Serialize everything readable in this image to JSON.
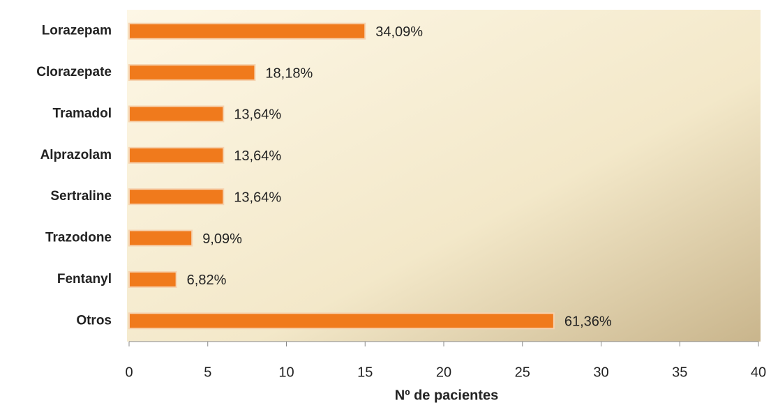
{
  "chart_data": {
    "type": "bar",
    "orientation": "horizontal",
    "categories": [
      "Lorazepam",
      "Clorazepate",
      "Tramadol",
      "Alprazolam",
      "Sertraline",
      "Trazodone",
      "Fentanyl",
      "Otros"
    ],
    "values": [
      15,
      8,
      6,
      6,
      6,
      4,
      3,
      27
    ],
    "data_labels": [
      "34,09%",
      "18,18%",
      "13,64%",
      "13,64%",
      "13,64%",
      "9,09%",
      "6,82%",
      "61,36%"
    ],
    "color": "#f07a1c",
    "xlim": [
      0,
      40
    ],
    "xticks": [
      0,
      5,
      10,
      15,
      20,
      25,
      30,
      35,
      40
    ],
    "x_label": "Nº de pacientes"
  }
}
